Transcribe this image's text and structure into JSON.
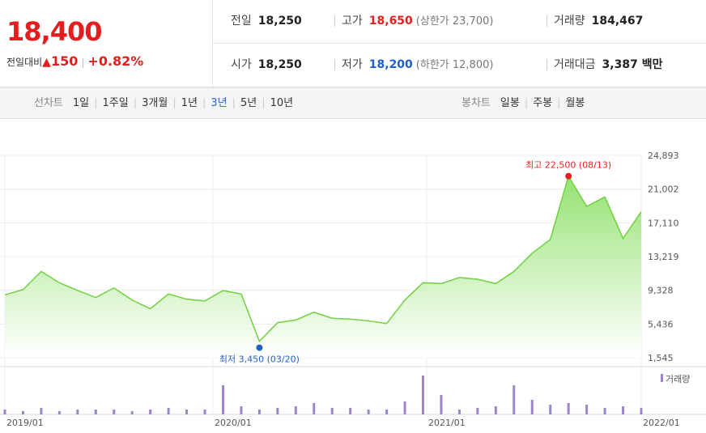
{
  "summary": {
    "price": "18,400",
    "change_label": "전일대비",
    "change_arrow": "▲",
    "change_value": "150",
    "change_pct": "+0.82%"
  },
  "stats": {
    "prev_close_label": "전일",
    "prev_close": "18,250",
    "high_label": "고가",
    "high": "18,650",
    "upper_limit": "(상한가 23,700)",
    "volume_label": "거래량",
    "volume": "184,467",
    "open_label": "시가",
    "open": "18,250",
    "low_label": "저가",
    "low": "18,200",
    "lower_limit": "(하한가 12,800)",
    "trade_value_label": "거래대금",
    "trade_value": "3,387 백만"
  },
  "tabs": {
    "line_label": "선차트",
    "line_items": [
      "1일",
      "1주일",
      "3개월",
      "1년",
      "3년",
      "5년",
      "10년"
    ],
    "line_active": "3년",
    "candle_label": "봉차트",
    "candle_items": [
      "일봉",
      "주봉",
      "월봉"
    ]
  },
  "colors": {
    "up": "#e41e1e",
    "down": "#1f5fc8",
    "area_top": "#8fe06a",
    "area_bottom": "#ffffff",
    "line": "#6fd140",
    "volume": "#9b86c9"
  },
  "chart_data": {
    "type": "area",
    "x_tick_labels": [
      "2019/01",
      "2020/01",
      "2021/01",
      "2022/01"
    ],
    "y_tick_labels": [
      "24,893",
      "21,002",
      "17,110",
      "13,219",
      "9,328",
      "5,436",
      "1,545"
    ],
    "ylim": [
      1545,
      24893
    ],
    "x": [
      "2019-01",
      "2019-02",
      "2019-03",
      "2019-04",
      "2019-05",
      "2019-06",
      "2019-07",
      "2019-08",
      "2019-09",
      "2019-10",
      "2019-11",
      "2019-12",
      "2020-01",
      "2020-02",
      "2020-03",
      "2020-04",
      "2020-05",
      "2020-06",
      "2020-07",
      "2020-08",
      "2020-09",
      "2020-10",
      "2020-11",
      "2020-12",
      "2021-01",
      "2021-02",
      "2021-03",
      "2021-04",
      "2021-05",
      "2021-06",
      "2021-07",
      "2021-08",
      "2021-09",
      "2021-10",
      "2021-11",
      "2021-12"
    ],
    "values": [
      8800,
      9400,
      11500,
      10200,
      9300,
      8500,
      9600,
      8200,
      7200,
      8900,
      8300,
      8100,
      9300,
      8900,
      3450,
      5600,
      5900,
      6800,
      6100,
      6000,
      5800,
      5500,
      8200,
      10200,
      10100,
      10800,
      10600,
      10100,
      11500,
      13600,
      15200,
      22500,
      19000,
      20100,
      15300,
      18400
    ],
    "high_label": "최고 22,500 (08/13)",
    "low_label": "최저 3,450 (03/20)",
    "high_value": 22500,
    "low_value": 3450,
    "volume_legend": "거래량",
    "volume": [
      3,
      2,
      4,
      2,
      3,
      3,
      3,
      2,
      3,
      4,
      3,
      3,
      18,
      5,
      3,
      4,
      5,
      7,
      4,
      4,
      3,
      3,
      8,
      24,
      12,
      3,
      4,
      5,
      18,
      9,
      6,
      7,
      6,
      4,
      5,
      4
    ]
  }
}
